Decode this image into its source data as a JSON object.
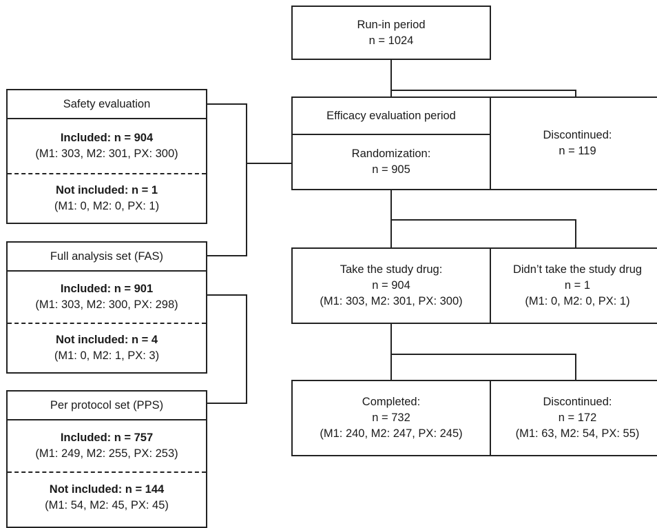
{
  "run_in": {
    "title": "Run-in period",
    "n": "n = 1024"
  },
  "efficacy": {
    "title": "Efficacy evaluation period",
    "randomization": "Randomization:",
    "randomization_n": "n = 905"
  },
  "discontinued_top": {
    "label": "Discontinued:",
    "n": "n = 119"
  },
  "take_drug": {
    "label": "Take the study drug:",
    "n": "n = 904",
    "detail": "(M1: 303, M2: 301, PX: 300)"
  },
  "no_drug": {
    "label": "Didn’t take the study drug",
    "n": "n = 1",
    "detail": "(M1: 0, M2: 0, PX: 1)"
  },
  "completed": {
    "label": "Completed:",
    "n": "n = 732",
    "detail": "(M1: 240, M2: 247, PX: 245)"
  },
  "discontinued_bottom": {
    "label": "Discontinued:",
    "n": "n = 172",
    "detail": "(M1: 63, M2: 54, PX: 55)"
  },
  "safety": {
    "title": "Safety evaluation",
    "included": "Included: n = 904",
    "included_detail": "(M1: 303, M2: 301, PX: 300)",
    "not_included": "Not included: n = 1",
    "not_included_detail": "(M1: 0, M2: 0, PX: 1)"
  },
  "fas": {
    "title": "Full analysis set (FAS)",
    "included": "Included: n = 901",
    "included_detail": "(M1: 303, M2: 300, PX: 298)",
    "not_included": "Not included: n = 4",
    "not_included_detail": "(M1: 0, M2: 1, PX: 3)"
  },
  "pps": {
    "title": "Per protocol set (PPS)",
    "included": "Included: n = 757",
    "included_detail": "(M1: 249, M2: 255, PX: 253)",
    "not_included": "Not included: n = 144",
    "not_included_detail": "(M1: 54, M2: 45, PX: 45)"
  }
}
